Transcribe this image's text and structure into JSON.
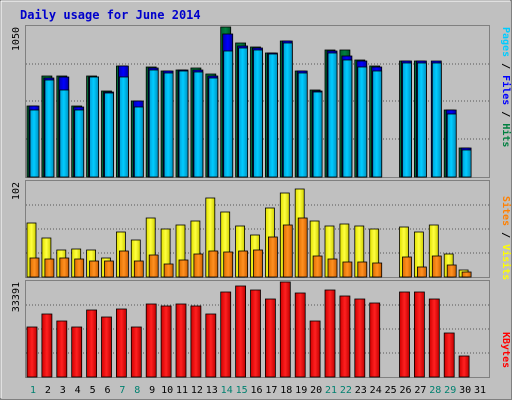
{
  "title": "Daily usage for June 2014",
  "colors": {
    "background": "#c0c0c0",
    "title": "#0000cc",
    "pages": "#00ccff",
    "files": "#0000ff",
    "hits": "#008040",
    "visits": "#ffff00",
    "sites": "#ff8000",
    "kbytes": "#ff0000",
    "weekend_day": "#00806f",
    "weekday": "#000000"
  },
  "panels": {
    "top": {
      "max_label": "1050",
      "legend": [
        {
          "text": "Pages",
          "color": "#00ccff"
        },
        {
          "text": " / ",
          "color": "#000000"
        },
        {
          "text": "Files",
          "color": "#0000ff"
        },
        {
          "text": " / ",
          "color": "#000000"
        },
        {
          "text": "Hits",
          "color": "#008040"
        }
      ]
    },
    "middle": {
      "max_label": "102",
      "legend": [
        {
          "text": "Sites",
          "color": "#ff8000"
        },
        {
          "text": " / ",
          "color": "#000000"
        },
        {
          "text": "Visits",
          "color": "#ffff00"
        }
      ]
    },
    "bottom": {
      "max_label": "33391",
      "legend": [
        {
          "text": "KBytes",
          "color": "#ff0000"
        }
      ]
    }
  },
  "chart_data": {
    "type": "bar",
    "title": "Daily usage for June 2014",
    "categories": [
      "1",
      "2",
      "3",
      "4",
      "5",
      "6",
      "7",
      "8",
      "9",
      "10",
      "11",
      "12",
      "13",
      "14",
      "15",
      "16",
      "17",
      "18",
      "19",
      "20",
      "21",
      "22",
      "23",
      "24",
      "25",
      "26",
      "27",
      "28",
      "29",
      "30",
      "31"
    ],
    "weekend_days": [
      1,
      7,
      8,
      14,
      15,
      21,
      22,
      28,
      29
    ],
    "panels": [
      {
        "name": "top",
        "ylim": [
          0,
          1050
        ],
        "series": [
          {
            "name": "Hits",
            "values": [
              500,
              705,
              710,
              495,
              705,
              600,
              780,
              530,
              770,
              745,
              750,
              760,
              720,
              1050,
              935,
              910,
              870,
              950,
              745,
              610,
              890,
              890,
              820,
              780,
              0,
              810,
              810,
              0,
              470,
              205,
              0
            ]
          },
          {
            "name": "Files",
            "values": [
              500,
              690,
              700,
              490,
              700,
              595,
              780,
              530,
              760,
              740,
              750,
              750,
              710,
              1000,
              920,
              905,
              870,
              950,
              740,
              600,
              880,
              850,
              810,
              770,
              0,
              810,
              810,
              810,
              470,
              200,
              0
            ]
          },
          {
            "name": "Pages",
            "values": [
              470,
              680,
              610,
              470,
              700,
              590,
              700,
              490,
              750,
              730,
              740,
              735,
              690,
              880,
              900,
              890,
              860,
              940,
              730,
              595,
              870,
              820,
              770,
              740,
              0,
              800,
              800,
              800,
              440,
              190,
              0
            ]
          }
        ]
      },
      {
        "name": "middle",
        "ylim": [
          0,
          102
        ],
        "series": [
          {
            "name": "Visits",
            "values": [
              58,
              42,
              29,
              30,
              29,
              20,
              48,
              40,
              63,
              52,
              56,
              60,
              85,
              70,
              55,
              45,
              74,
              90,
              95,
              60,
              55,
              57,
              55,
              52,
              0,
              54,
              48,
              56,
              25,
              8,
              0
            ]
          },
          {
            "name": "Sites",
            "values": [
              20,
              19,
              20,
              19,
              17,
              17,
              28,
              17,
              24,
              14,
              18,
              25,
              28,
              27,
              28,
              29,
              43,
              56,
              63,
              23,
              19,
              16,
              16,
              15,
              0,
              21,
              11,
              23,
              13,
              5,
              0
            ]
          }
        ]
      },
      {
        "name": "bottom",
        "ylim": [
          0,
          33391
        ],
        "series": [
          {
            "name": "KBytes",
            "values": [
              17500,
              22000,
              19800,
              17400,
              23500,
              21000,
              24000,
              17500,
              25500,
              25000,
              25500,
              25000,
              22200,
              30000,
              32000,
              30500,
              27500,
              33391,
              29500,
              19800,
              30500,
              28500,
              27500,
              26000,
              0,
              30000,
              30000,
              27500,
              15500,
              7500,
              0
            ]
          }
        ]
      }
    ]
  }
}
